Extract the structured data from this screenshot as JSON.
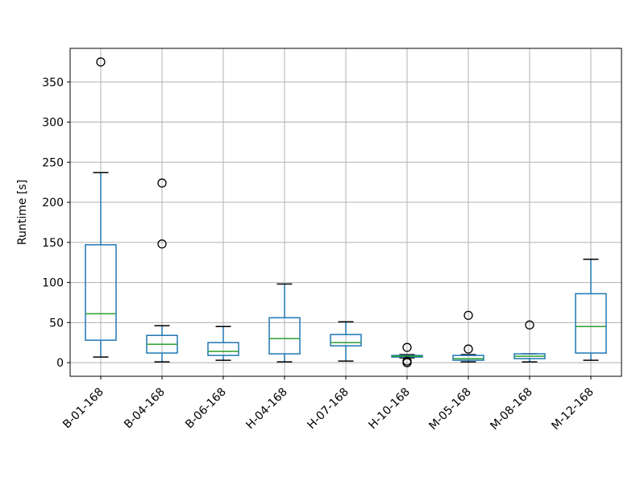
{
  "chart_data": {
    "type": "box",
    "title": "",
    "xlabel": "",
    "ylabel": "Runtime [s]",
    "ylim": [
      -17,
      392
    ],
    "yticks": [
      0,
      50,
      100,
      150,
      200,
      250,
      300,
      350
    ],
    "grid": true,
    "box_color": "#1f77b4",
    "median_color": "#2ca02c",
    "grid_color": "#b0b0b0",
    "categories": [
      "B-01-168",
      "B-04-168",
      "B-06-168",
      "H-04-168",
      "H-07-168",
      "H-10-168",
      "M-05-168",
      "M-08-168",
      "M-12-168"
    ],
    "boxes": [
      {
        "label": "B-01-168",
        "whislo": 7,
        "q1": 28,
        "med": 61,
        "q3": 147,
        "whishi": 237,
        "fliers": [
          375
        ]
      },
      {
        "label": "B-04-168",
        "whislo": 1,
        "q1": 12,
        "med": 23,
        "q3": 34,
        "whishi": 46,
        "fliers": [
          224,
          148
        ]
      },
      {
        "label": "B-06-168",
        "whislo": 3,
        "q1": 9,
        "med": 14,
        "q3": 25,
        "whishi": 45,
        "fliers": []
      },
      {
        "label": "H-04-168",
        "whislo": 1,
        "q1": 11,
        "med": 30,
        "q3": 56,
        "whishi": 98,
        "fliers": []
      },
      {
        "label": "H-07-168",
        "whislo": 2,
        "q1": 21,
        "med": 25,
        "q3": 35,
        "whishi": 51,
        "fliers": []
      },
      {
        "label": "H-10-168",
        "whislo": 6,
        "q1": 7,
        "med": 8,
        "q3": 9,
        "whishi": 10,
        "fliers": [
          19,
          2,
          0
        ]
      },
      {
        "label": "M-05-168",
        "whislo": 1,
        "q1": 3,
        "med": 5,
        "q3": 9,
        "whishi": 10,
        "fliers": [
          59,
          17
        ]
      },
      {
        "label": "M-08-168",
        "whislo": 1,
        "q1": 5,
        "med": 8,
        "q3": 11,
        "whishi": 11,
        "fliers": [
          47
        ]
      },
      {
        "label": "M-12-168",
        "whislo": 3,
        "q1": 12,
        "med": 45,
        "q3": 86,
        "whishi": 129,
        "fliers": []
      }
    ]
  }
}
